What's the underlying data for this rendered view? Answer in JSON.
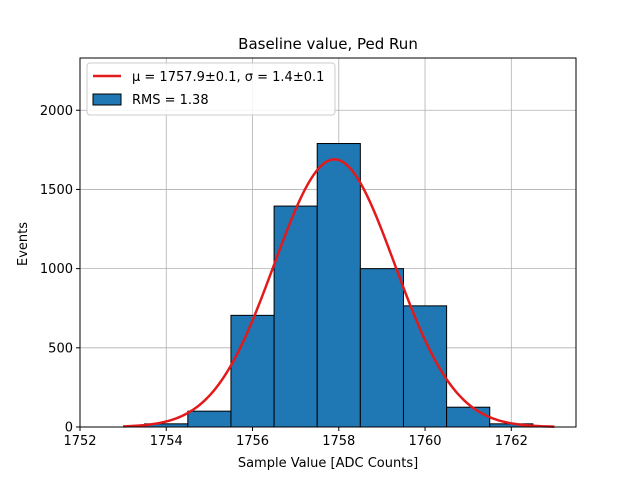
{
  "chart_data": {
    "type": "bar",
    "title": "Baseline value, Ped Run",
    "xlabel": "Sample Value [ADC Counts]",
    "ylabel": "Events",
    "xlim": [
      1752,
      1763.5
    ],
    "ylim": [
      0,
      2330
    ],
    "xticks": [
      1752,
      1754,
      1756,
      1758,
      1760,
      1762
    ],
    "yticks": [
      0,
      500,
      1000,
      1500,
      2000
    ],
    "grid": true,
    "legend_position": "top-left",
    "bar_color": "#1f77b4",
    "fit_color": "#e31a1c",
    "bins": [
      {
        "left": 1753.5,
        "right": 1754.5,
        "value": 20
      },
      {
        "left": 1754.5,
        "right": 1755.5,
        "value": 100
      },
      {
        "left": 1755.5,
        "right": 1756.5,
        "value": 705
      },
      {
        "left": 1756.5,
        "right": 1757.5,
        "value": 1395
      },
      {
        "left": 1757.5,
        "right": 1758.5,
        "value": 1790
      },
      {
        "left": 1758.5,
        "right": 1759.5,
        "value": 1000
      },
      {
        "left": 1759.5,
        "right": 1760.5,
        "value": 765
      },
      {
        "left": 1760.5,
        "right": 1761.5,
        "value": 125
      },
      {
        "left": 1761.5,
        "right": 1762.5,
        "value": 20
      }
    ],
    "fit": {
      "mu": 1757.9,
      "sigma": 1.4,
      "amplitude": 1690,
      "x_range": [
        1753,
        1763
      ]
    },
    "series": [
      {
        "name": "μ = 1757.9±0.1, σ = 1.4±0.1",
        "kind": "line"
      },
      {
        "name": "RMS = 1.38",
        "kind": "bar"
      }
    ]
  }
}
